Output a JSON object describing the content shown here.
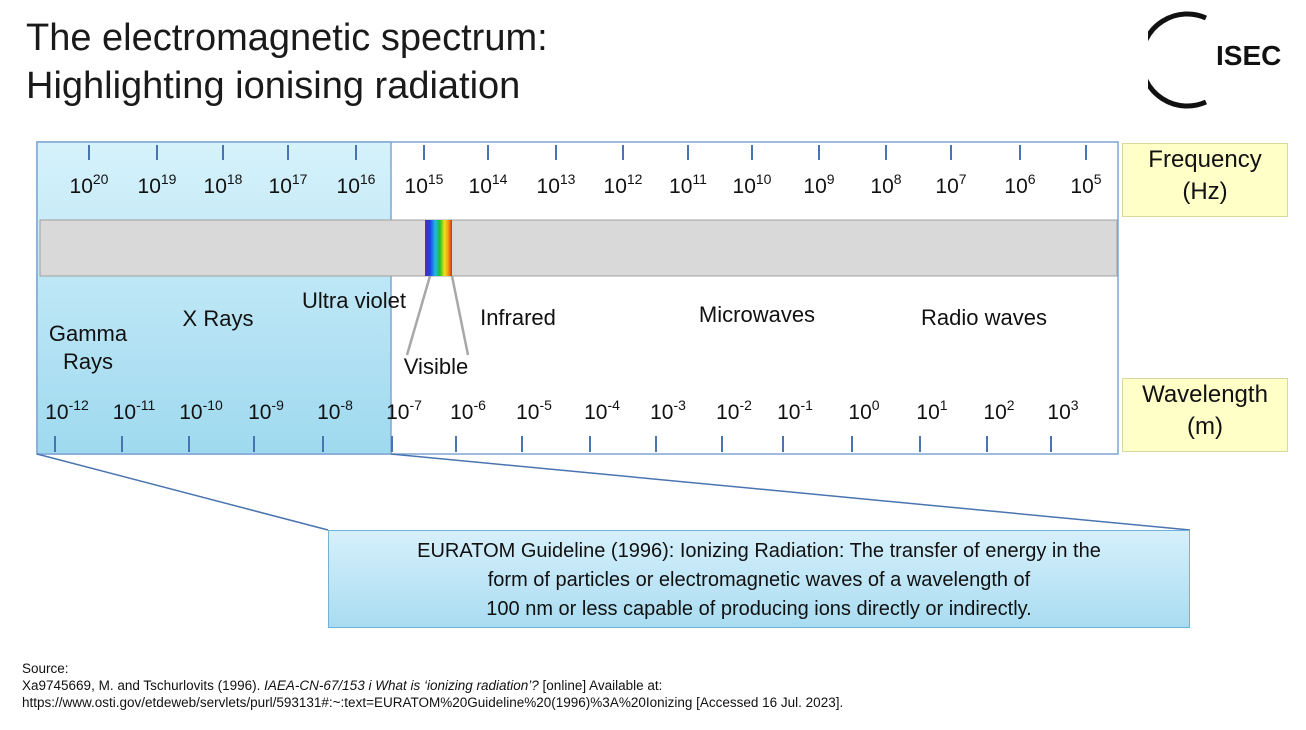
{
  "title": {
    "line1": "The electromagnetic spectrum:",
    "line2": "Highlighting ionising radiation"
  },
  "logo": {
    "text": "ISEC",
    "icon": "isec-logo-icon"
  },
  "frequency_axis": {
    "label_line1": "Frequency",
    "label_line2": "(Hz)",
    "ticks": [
      {
        "base": "10",
        "exp": "20"
      },
      {
        "base": "10",
        "exp": "19"
      },
      {
        "base": "10",
        "exp": "18"
      },
      {
        "base": "10",
        "exp": "17"
      },
      {
        "base": "10",
        "exp": "16"
      },
      {
        "base": "10",
        "exp": "15"
      },
      {
        "base": "10",
        "exp": "14"
      },
      {
        "base": "10",
        "exp": "13"
      },
      {
        "base": "10",
        "exp": "12"
      },
      {
        "base": "10",
        "exp": "11"
      },
      {
        "base": "10",
        "exp": "10"
      },
      {
        "base": "10",
        "exp": "9"
      },
      {
        "base": "10",
        "exp": "8"
      },
      {
        "base": "10",
        "exp": "7"
      },
      {
        "base": "10",
        "exp": "6"
      },
      {
        "base": "10",
        "exp": "5"
      }
    ]
  },
  "wavelength_axis": {
    "label_line1": "Wavelength",
    "label_line2": "(m)",
    "ticks": [
      {
        "base": "10",
        "exp": "-12"
      },
      {
        "base": "10",
        "exp": "-11"
      },
      {
        "base": "10",
        "exp": "-10"
      },
      {
        "base": "10",
        "exp": "-9"
      },
      {
        "base": "10",
        "exp": "-8"
      },
      {
        "base": "10",
        "exp": "-7"
      },
      {
        "base": "10",
        "exp": "-6"
      },
      {
        "base": "10",
        "exp": "-5"
      },
      {
        "base": "10",
        "exp": "-4"
      },
      {
        "base": "10",
        "exp": "-3"
      },
      {
        "base": "10",
        "exp": "-2"
      },
      {
        "base": "10",
        "exp": "-1"
      },
      {
        "base": "10",
        "exp": "0"
      },
      {
        "base": "10",
        "exp": "1"
      },
      {
        "base": "10",
        "exp": "2"
      },
      {
        "base": "10",
        "exp": "3"
      }
    ]
  },
  "regions": {
    "gamma_line1": "Gamma",
    "gamma_line2": "Rays",
    "xrays": "X Rays",
    "ultraviolet": "Ultra violet",
    "visible": "Visible",
    "infrared": "Infrared",
    "microwaves": "Microwaves",
    "radio": "Radio waves"
  },
  "note": {
    "line1": "EURATOM Guideline (1996): Ionizing Radiation: The transfer of energy in the",
    "line2": "form of particles or electromagnetic waves of a wavelength of",
    "line3": "100 nm or less  capable of producing ions directly or indirectly."
  },
  "source": {
    "heading": "Source:",
    "line1_prefix": "Xa9745669, M. and Tschurlovits (1996). ",
    "line1_italic": "IAEA-CN-67/153 i What is ‘ionizing radiation’?",
    "line1_suffix": " [online] Available at:",
    "line2": "https://www.osti.gov/etdeweb/servlets/purl/593131#:~:text=EURATOM%20Guideline%20(1996)%3A%20Ionizing [Accessed 16 Jul. 2023]."
  },
  "colors": {
    "ionising_fill": "#b9e6f6",
    "band_fill": "#d9d9d9",
    "box_border": "#7ea6d3",
    "axis_label_fill": "#ffffc8",
    "tick": "#4a74b0"
  }
}
